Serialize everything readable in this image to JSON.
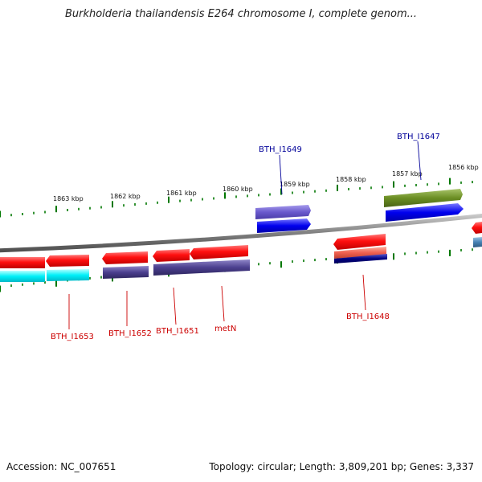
{
  "title": "Burkholderia thailandensis E264 chromosome I, complete genom...",
  "accession": "Accession: NC_007651",
  "summary": "Topology: circular; Length: 3,809,201 bp; Genes: 3,337",
  "scale_unit": "kbp",
  "ticks": [
    "1863 kbp",
    "1862 kbp",
    "1861 kbp",
    "1860 kbp",
    "1859 kbp",
    "1858 kbp",
    "1857 kbp",
    "1856 kbp"
  ],
  "genes": [
    {
      "label": "BTH_I1653",
      "strand": "minus",
      "color": "#cc0000"
    },
    {
      "label": "BTH_I1652",
      "strand": "minus",
      "color": "#cc0000"
    },
    {
      "label": "BTH_I1651",
      "strand": "minus",
      "color": "#cc0000"
    },
    {
      "label": "metN",
      "strand": "minus",
      "color": "#cc0000"
    },
    {
      "label": "BTH_I1648",
      "strand": "minus",
      "color": "#cc0000"
    },
    {
      "label": "BTH_I1649",
      "strand": "plus",
      "color": "#000099"
    },
    {
      "label": "BTH_I1647",
      "strand": "plus",
      "color": "#000099"
    }
  ],
  "colors": {
    "cds_red": "#e00000",
    "cyan": "#00e5ee",
    "slate": "#4b3f8e",
    "blue": "#0000ee",
    "olive": "#6b8e23",
    "salmon": "#f06050",
    "navy": "#000080",
    "tick_green": "#007700",
    "backbone": "#808080"
  }
}
